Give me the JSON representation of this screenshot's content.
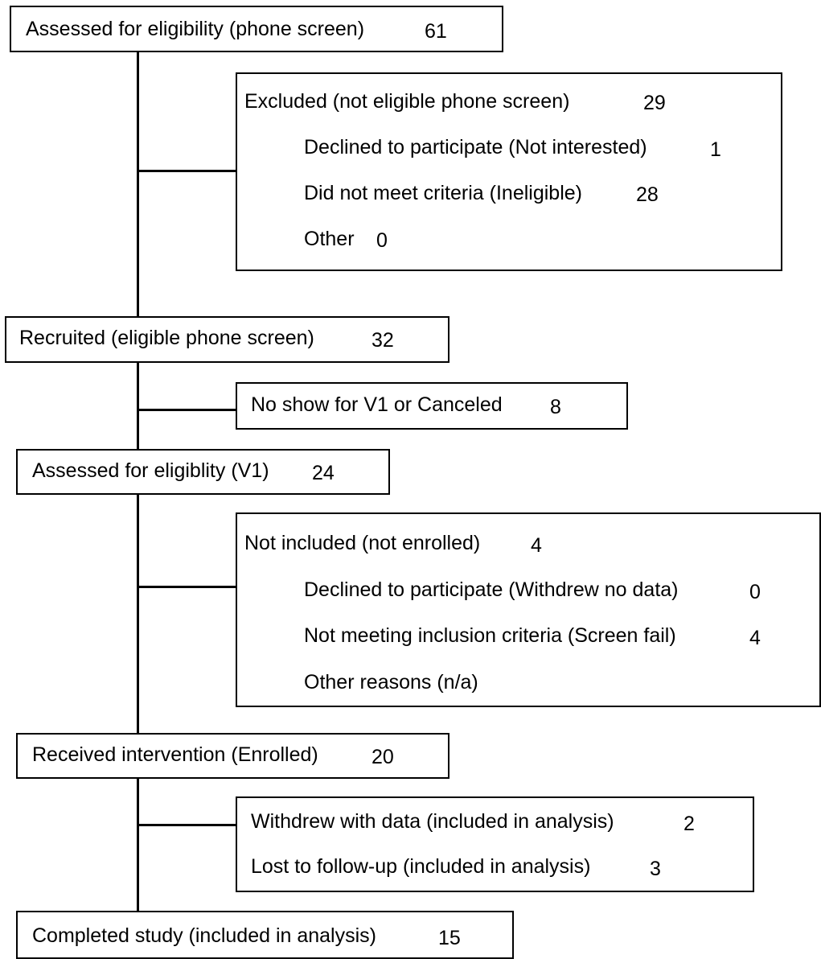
{
  "assessed_phone": {
    "label": "Assessed for eligibility (phone screen)",
    "count": "61"
  },
  "excluded_phone": {
    "label": "Excluded (not eligible phone screen)",
    "count": "29",
    "items": [
      {
        "label": "Declined to participate (Not interested)",
        "count": "1"
      },
      {
        "label": "Did not meet criteria (Ineligible)",
        "count": "28"
      },
      {
        "label": "Other",
        "count": "0"
      }
    ]
  },
  "recruited": {
    "label": "Recruited (eligible phone screen)",
    "count": "32"
  },
  "no_show": {
    "label": "No show for V1 or Canceled",
    "count": "8"
  },
  "assessed_v1": {
    "label": "Assessed for eligiblity (V1)",
    "count": "24"
  },
  "not_included": {
    "label": "Not included (not enrolled)",
    "count": "4",
    "items": [
      {
        "label": "Declined to participate (Withdrew no data)",
        "count": "0"
      },
      {
        "label": "Not meeting inclusion criteria (Screen fail)",
        "count": "4"
      },
      {
        "label": "Other reasons (n/a)",
        "count": ""
      }
    ]
  },
  "enrolled": {
    "label": "Received intervention (Enrolled)",
    "count": "20"
  },
  "withdrew": {
    "items": [
      {
        "label": "Withdrew with data (included in analysis)",
        "count": "2"
      },
      {
        "label": "Lost to follow-up (included in analysis)",
        "count": "3"
      }
    ]
  },
  "completed": {
    "label": "Completed study (included in analysis)",
    "count": "15"
  }
}
